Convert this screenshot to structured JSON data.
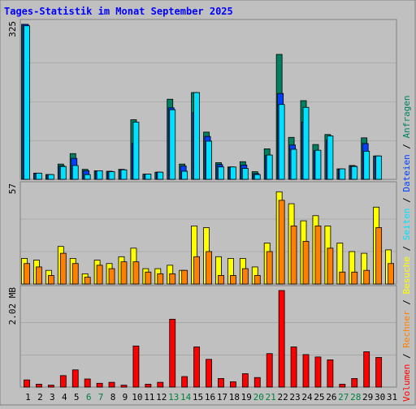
{
  "chart_data": {
    "type": "bar",
    "title": "Tages-Statistik im Monat September 2025",
    "categories": [
      "1",
      "2",
      "3",
      "4",
      "5",
      "6",
      "7",
      "8",
      "9",
      "10",
      "11",
      "12",
      "13",
      "14",
      "15",
      "16",
      "17",
      "18",
      "19",
      "20",
      "21",
      "22",
      "23",
      "24",
      "25",
      "26",
      "27",
      "28",
      "29",
      "30",
      "31"
    ],
    "weekend_days": [
      "6",
      "7",
      "13",
      "14",
      "20",
      "21",
      "27",
      "28"
    ],
    "panels": [
      {
        "scale_label": "325",
        "ylim": [
          0,
          325
        ],
        "series": [
          {
            "name": "Anfragen",
            "color": "#008060",
            "values": [
              325,
              13,
              10,
              32,
              54,
              21,
              18,
              17,
              21,
              125,
              11,
              15,
              168,
              32,
              182,
              99,
              35,
              26,
              37,
              16,
              64,
              262,
              88,
              165,
              73,
              94,
              22,
              29,
              87,
              49,
              0
            ]
          },
          {
            "name": "Dateien",
            "color": "#0040ff",
            "values": [
              325,
              13,
              10,
              28,
              44,
              18,
              17,
              16,
              20,
              75,
              11,
              15,
              150,
              28,
              140,
              90,
              31,
              25,
              30,
              12,
              50,
              180,
              72,
              120,
              60,
              82,
              21,
              28,
              75,
              49,
              0
            ]
          },
          {
            "name": "Seiten",
            "color": "#00e0ff",
            "values": [
              322,
              13,
              10,
              27,
              29,
              10,
              18,
              16,
              20,
              120,
              11,
              15,
              146,
              17,
              182,
              80,
              26,
              26,
              23,
              10,
              51,
              157,
              63,
              151,
              61,
              91,
              22,
              27,
              59,
              49,
              0
            ]
          }
        ]
      },
      {
        "scale_label": "57",
        "ylim": [
          0,
          57
        ],
        "series": [
          {
            "name": "Besuche",
            "color": "#ffff00",
            "values": [
              15,
              14,
              8,
              22,
              15,
              6,
              14,
              12,
              16,
              21,
              9,
              9,
              11,
              8,
              34,
              33,
              16,
              15,
              15,
              10,
              24,
              54,
              47,
              37,
              40,
              34,
              24,
              19,
              18,
              45,
              20
            ]
          },
          {
            "name": "Rechner",
            "color": "#ff8000",
            "values": [
              12,
              10,
              5,
              18,
              12,
              4,
              11,
              9,
              13,
              13,
              7,
              6,
              6,
              8,
              16,
              19,
              5,
              5,
              9,
              5,
              19,
              49,
              34,
              25,
              34,
              21,
              7,
              7,
              8,
              33,
              12
            ]
          }
        ]
      },
      {
        "scale_label": "2.02 MB",
        "ylim": [
          0,
          2.02
        ],
        "series": [
          {
            "name": "Volumen",
            "color": "#ff0000",
            "values": [
              0.15,
              0.06,
              0.04,
              0.24,
              0.36,
              0.17,
              0.08,
              0.1,
              0.04,
              0.86,
              0.06,
              0.1,
              1.42,
              0.22,
              0.84,
              0.58,
              0.18,
              0.11,
              0.28,
              0.2,
              0.7,
              2.02,
              0.84,
              0.68,
              0.63,
              0.57,
              0.06,
              0.18,
              0.74,
              0.62,
              0
            ]
          }
        ]
      }
    ],
    "legend": [
      {
        "text": "Volumen",
        "color": "#ff0000"
      },
      {
        "text": "Rechner",
        "color": "#ff8000"
      },
      {
        "text": "Besuche",
        "color": "#ffff00"
      },
      {
        "text": "Seiten",
        "color": "#00e0ff"
      },
      {
        "text": "Dateien",
        "color": "#0040ff"
      },
      {
        "text": "Anfragen",
        "color": "#008060"
      }
    ],
    "legend_separator": " / ",
    "colors": {
      "background": "#c0c0c0",
      "title": "#0000ff",
      "weekday_label": "#000000",
      "weekend_label": "#008040",
      "grid": "#999999",
      "bar_outline": "#000000"
    }
  }
}
